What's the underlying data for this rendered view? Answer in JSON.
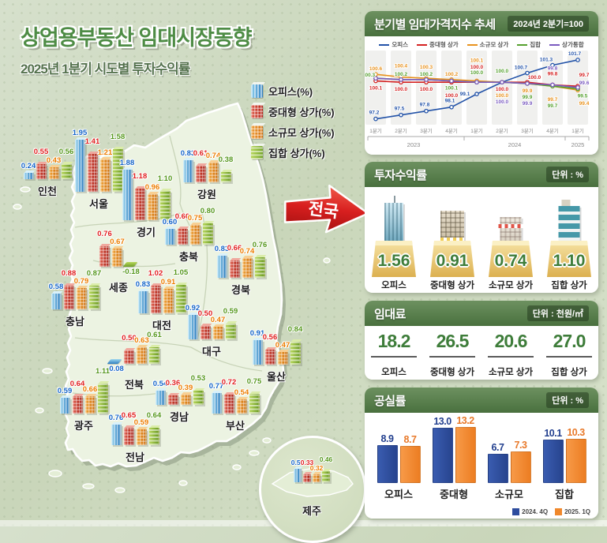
{
  "header": {
    "title": "상업용부동산 임대시장동향",
    "subtitle": "2025년 1분기 시도별 투자수익률"
  },
  "map": {
    "nationwide_label": "전국",
    "legend": [
      {
        "label": "오피스(%)",
        "color": "#2f7fc0",
        "icon": "office-building-icon"
      },
      {
        "label": "중대형 상가(%)",
        "color": "#b42418",
        "icon": "midsize-shop-icon"
      },
      {
        "label": "소규모 상가(%)",
        "color": "#d4720e",
        "icon": "small-shop-icon"
      },
      {
        "label": "집합 상가(%)",
        "color": "#74a42c",
        "icon": "mixed-shop-icon"
      }
    ]
  },
  "chart_data": [
    {
      "type": "bar",
      "title": "2025년 1분기 시도별 투자수익률",
      "unit": "%",
      "series_names": [
        "오피스",
        "중대형 상가",
        "소규모 상가",
        "집합 상가"
      ],
      "regions": [
        {
          "name": "인천",
          "values": [
            0.24,
            0.55,
            0.43,
            0.56
          ]
        },
        {
          "name": "서울",
          "values": [
            1.95,
            1.41,
            1.21,
            1.58
          ]
        },
        {
          "name": "경기",
          "values": [
            1.88,
            1.18,
            0.96,
            1.1
          ]
        },
        {
          "name": "강원",
          "values": [
            0.83,
            0.61,
            0.74,
            0.38
          ]
        },
        {
          "name": "충북",
          "values": [
            0.6,
            0.6,
            0.75,
            0.8
          ]
        },
        {
          "name": "세종",
          "values": [
            null,
            0.76,
            0.67,
            -0.18
          ]
        },
        {
          "name": "충남",
          "values": [
            0.58,
            0.88,
            0.79,
            0.87
          ]
        },
        {
          "name": "대전",
          "values": [
            0.83,
            1.02,
            0.91,
            1.05
          ]
        },
        {
          "name": "경북",
          "values": [
            0.83,
            0.66,
            0.74,
            0.76
          ]
        },
        {
          "name": "대구",
          "values": [
            0.92,
            0.5,
            0.47,
            0.59
          ]
        },
        {
          "name": "전북",
          "values": [
            -0.08,
            0.5,
            0.63,
            0.61
          ]
        },
        {
          "name": "울산",
          "values": [
            0.91,
            0.56,
            0.47,
            0.84
          ]
        },
        {
          "name": "경남",
          "values": [
            0.54,
            0.36,
            0.39,
            0.53
          ]
        },
        {
          "name": "부산",
          "values": [
            0.77,
            0.72,
            0.54,
            0.75
          ]
        },
        {
          "name": "광주",
          "values": [
            0.59,
            0.64,
            0.66,
            1.11
          ]
        },
        {
          "name": "전남",
          "values": [
            0.76,
            0.65,
            0.59,
            0.64
          ]
        },
        {
          "name": "제주",
          "values": [
            0.56,
            0.33,
            0.32,
            0.46
          ]
        }
      ]
    },
    {
      "type": "line",
      "title": "분기별 임대가격지수 추세",
      "note": "2024년 2분기=100",
      "x": [
        "1분기",
        "2분기",
        "3분기",
        "4분기",
        "1분기",
        "2분기",
        "3분기",
        "4분기",
        "1분기"
      ],
      "x_groups": [
        "2023",
        "2024",
        "2025"
      ],
      "ylim": [
        96.8,
        102.3
      ],
      "series": [
        {
          "name": "오피스",
          "color": "#2353a8",
          "values": [
            97.2,
            97.5,
            97.8,
            98.1,
            99.1,
            100.0,
            100.7,
            101.3,
            101.7
          ]
        },
        {
          "name": "중대형 상가",
          "color": "#d42222",
          "values": [
            100.1,
            100.0,
            100.0,
            100.0,
            100.0,
            100.0,
            100.0,
            99.8,
            99.7
          ]
        },
        {
          "name": "소규모 상가",
          "color": "#e8921e",
          "values": [
            100.6,
            100.4,
            100.3,
            100.2,
            100.1,
            100.0,
            99.9,
            99.7,
            99.4
          ]
        },
        {
          "name": "집합",
          "color": "#55a02e",
          "values": [
            100.3,
            100.2,
            100.2,
            100.1,
            100.0,
            100.0,
            99.9,
            99.7,
            99.5
          ]
        },
        {
          "name": "상가통합",
          "color": "#7a5bbf",
          "values": [
            100.3,
            100.2,
            100.2,
            100.1,
            100.0,
            100.0,
            99.9,
            99.8,
            99.6
          ]
        }
      ]
    },
    {
      "type": "table",
      "title": "투자수익률",
      "unit_label": "단위 : %",
      "categories": [
        "오피스",
        "중대형 상가",
        "소규모 상가",
        "집합 상가"
      ],
      "values": [
        1.56,
        0.91,
        0.74,
        1.1
      ],
      "icons": [
        "office-tower-icon",
        "midsize-building-icon",
        "small-shop-icon",
        "mixed-building-icon"
      ]
    },
    {
      "type": "table",
      "title": "임대료",
      "unit_label": "단위 : 천원/㎡",
      "categories": [
        "오피스",
        "중대형 상가",
        "소규모 상가",
        "집합 상가"
      ],
      "values": [
        18.2,
        26.5,
        20.6,
        27.0
      ]
    },
    {
      "type": "bar",
      "title": "공실률",
      "unit_label": "단위 : %",
      "categories": [
        "오피스",
        "중대형",
        "소규모",
        "집합"
      ],
      "series": [
        {
          "name": "2024. 4Q",
          "color": "#2e4d9e",
          "values": [
            8.9,
            13.0,
            6.7,
            10.1
          ]
        },
        {
          "name": "2025. 1Q",
          "color": "#f0882c",
          "values": [
            8.7,
            13.2,
            7.3,
            10.3
          ]
        }
      ]
    }
  ]
}
